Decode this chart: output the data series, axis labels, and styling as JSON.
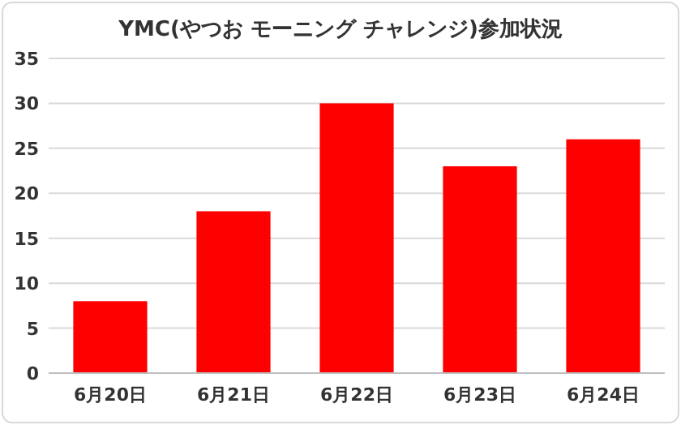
{
  "chart_data": {
    "type": "bar",
    "title": "YMC(やつお モーニング チャレンジ)参加状況",
    "categories": [
      "6月20日",
      "6月21日",
      "6月22日",
      "6月23日",
      "6月24日"
    ],
    "values": [
      8,
      18,
      30,
      23,
      26
    ],
    "color": "#ff0000",
    "ylim": [
      0,
      35
    ],
    "yticks": [
      0,
      5,
      10,
      15,
      20,
      25,
      30,
      35
    ],
    "grid": "y"
  }
}
